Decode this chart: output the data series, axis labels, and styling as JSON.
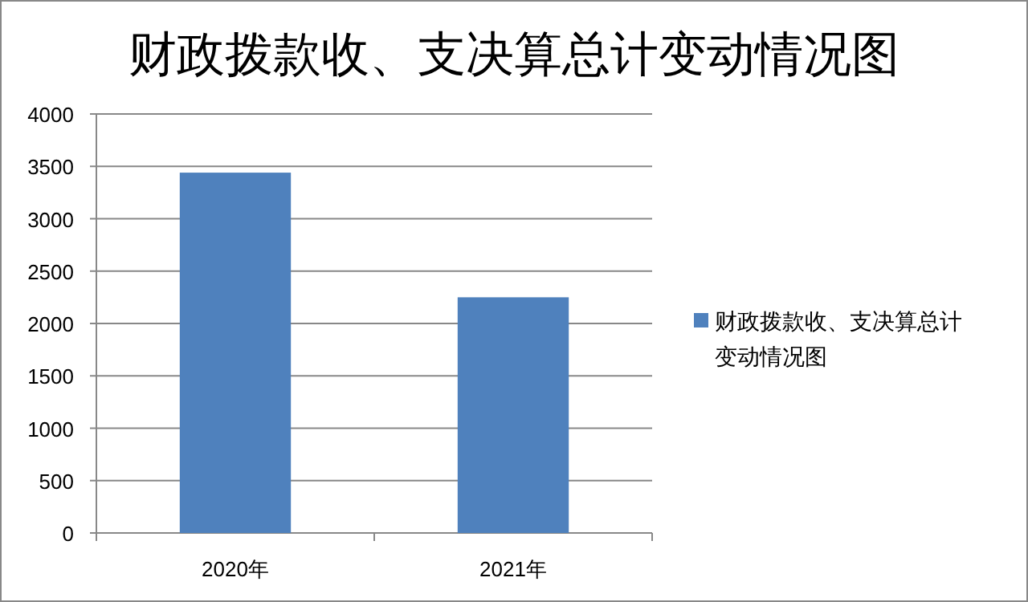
{
  "chart_data": {
    "type": "bar",
    "title": "财政拨款收、支决算总计变动情况图",
    "categories": [
      "2020年",
      "2021年"
    ],
    "series": [
      {
        "name": "财政拨款收、支决算总计变动情况图",
        "color": "#4f81bd",
        "values": [
          3440,
          2250
        ]
      }
    ],
    "ylim": [
      0,
      4000
    ],
    "yticks": [
      0,
      500,
      1000,
      1500,
      2000,
      2500,
      3000,
      3500,
      4000
    ],
    "grid": "y",
    "legend": "right"
  }
}
